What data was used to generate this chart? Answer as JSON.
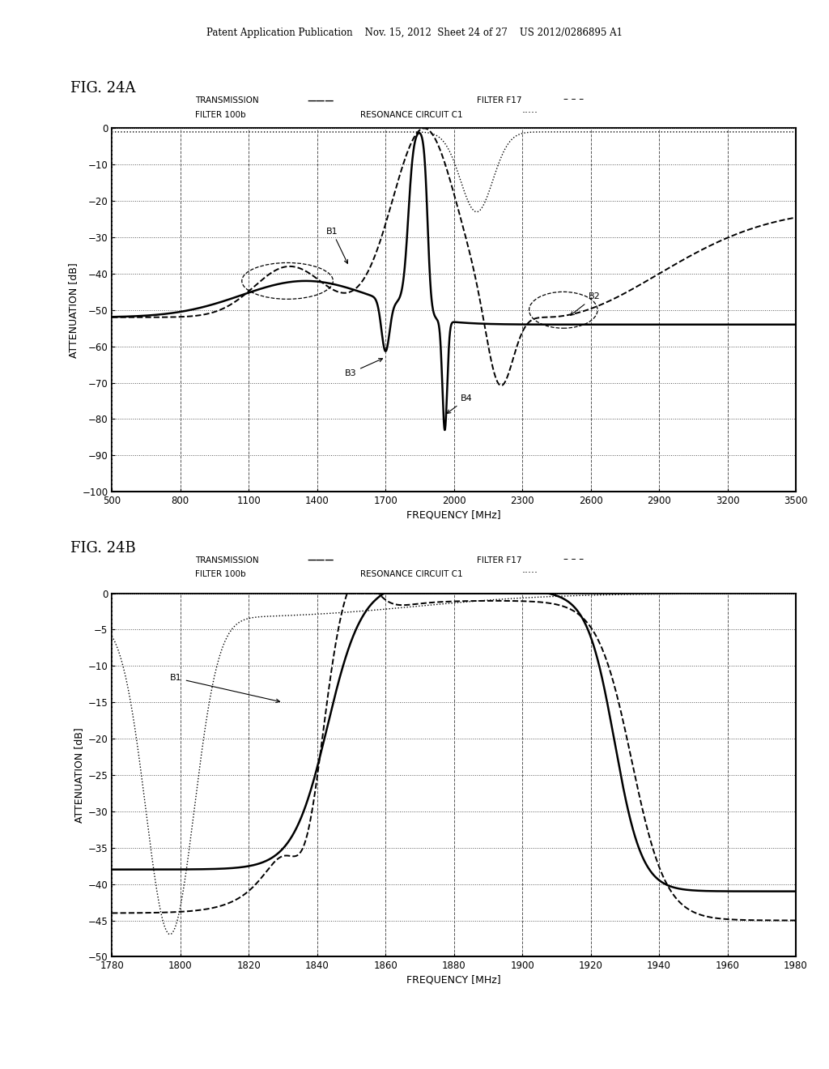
{
  "header_text": "Patent Application Publication    Nov. 15, 2012  Sheet 24 of 27    US 2012/0286895 A1",
  "fig_a_label": "FIG. 24A",
  "fig_b_label": "FIG. 24B",
  "ylabel": "ATTENUATION [dB]",
  "xlabel": "FREQUENCY [MHz]",
  "plot_a": {
    "xlim": [
      500,
      3500
    ],
    "xticks": [
      500,
      800,
      1100,
      1400,
      1700,
      2000,
      2300,
      2600,
      2900,
      3200,
      3500
    ],
    "ylim": [
      -100,
      0
    ],
    "yticks": [
      0,
      -10,
      -20,
      -30,
      -40,
      -50,
      -60,
      -70,
      -80,
      -90,
      -100
    ]
  },
  "plot_b": {
    "xlim": [
      1780,
      1980
    ],
    "xticks": [
      1780,
      1800,
      1820,
      1840,
      1860,
      1880,
      1900,
      1920,
      1940,
      1960,
      1980
    ],
    "ylim": [
      -50,
      0
    ],
    "yticks": [
      0,
      -5,
      -10,
      -15,
      -20,
      -25,
      -30,
      -35,
      -40,
      -45,
      -50
    ]
  },
  "background": "#ffffff",
  "line_color": "#000000"
}
